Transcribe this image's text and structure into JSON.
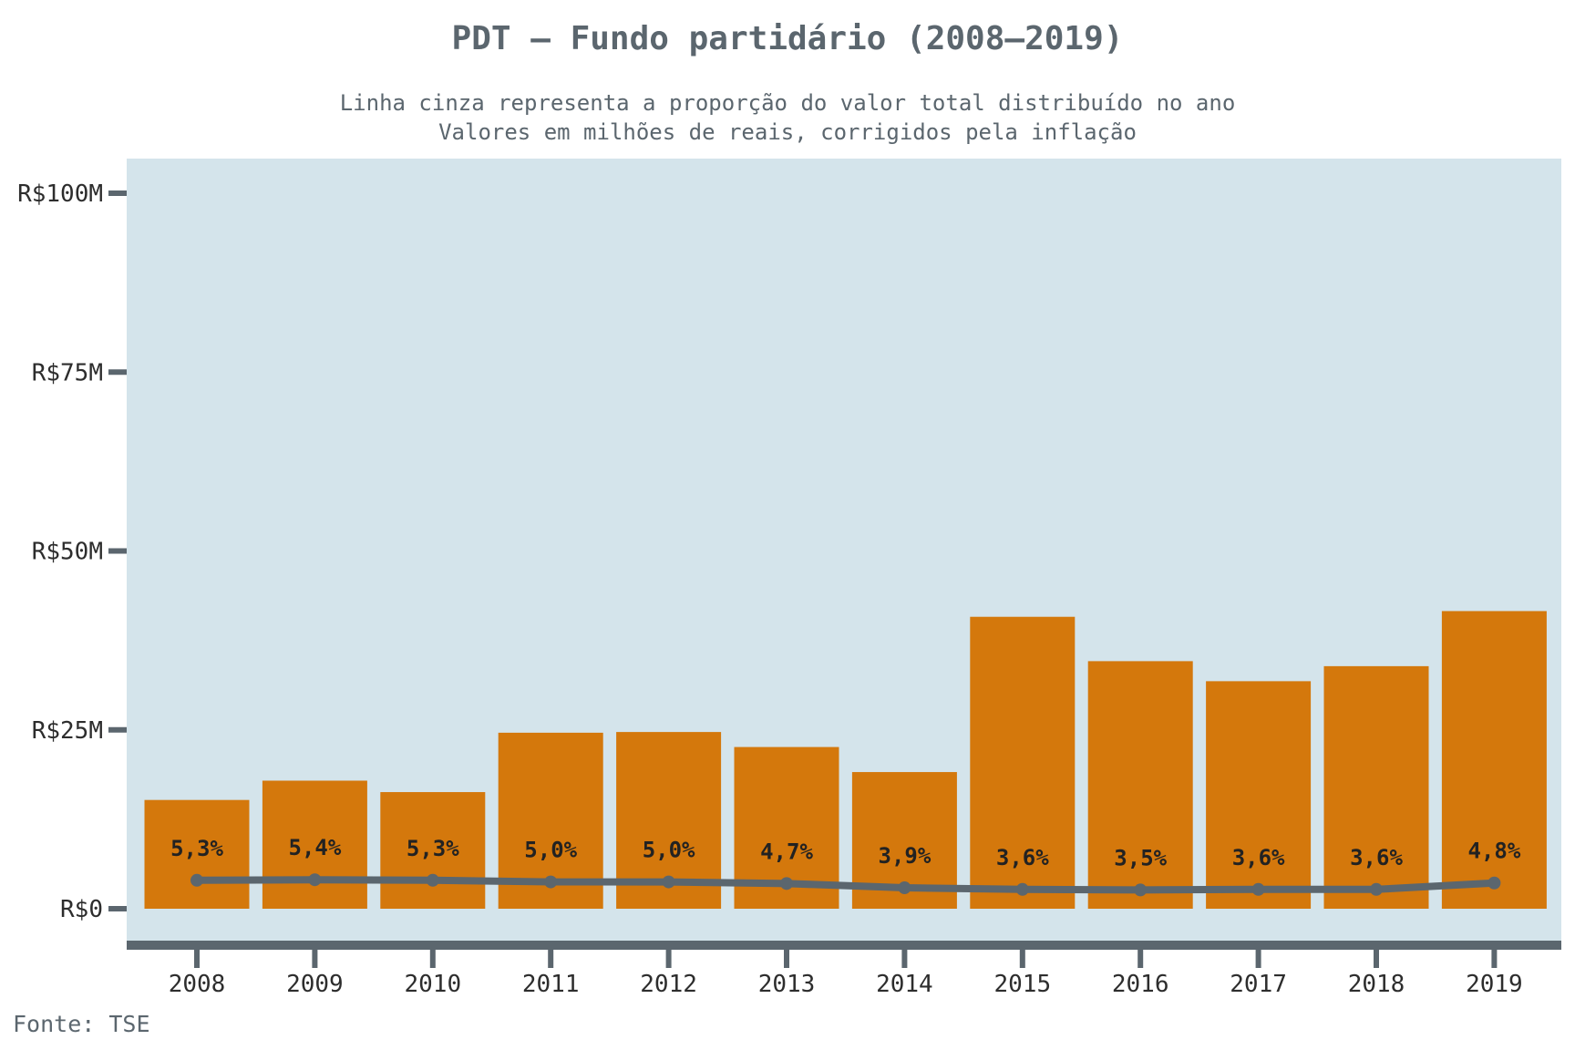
{
  "chart_data": {
    "type": "bar",
    "title": "PDT – Fundo partidário (2008–2019)",
    "subtitle_lines": [
      "Linha cinza representa a proporção do valor total distribuído no ano",
      "Valores em milhões de reais, corrigidos pela inflação"
    ],
    "source": "Fonte: TSE",
    "categories": [
      "2008",
      "2009",
      "2010",
      "2011",
      "2012",
      "2013",
      "2014",
      "2015",
      "2016",
      "2017",
      "2018",
      "2019"
    ],
    "series": [
      {
        "type": "bar",
        "values": [
          15.2,
          17.9,
          16.3,
          24.6,
          24.7,
          22.6,
          19.1,
          40.8,
          34.6,
          31.8,
          33.9,
          41.6
        ]
      },
      {
        "type": "line",
        "values": [
          5.3,
          5.4,
          5.3,
          5.0,
          5.0,
          4.7,
          3.9,
          3.6,
          3.5,
          3.6,
          3.6,
          4.8
        ],
        "labels": [
          "5,3%",
          "5,4%",
          "5,3%",
          "5,0%",
          "5,0%",
          "4,7%",
          "3,9%",
          "3,6%",
          "3,5%",
          "3,6%",
          "3,6%",
          "4,8%"
        ]
      }
    ],
    "ylim": [
      0,
      100
    ],
    "yticks": [
      0,
      25,
      50,
      75,
      100
    ],
    "ytick_labels": [
      "R$0",
      "R$25M",
      "R$50M",
      "R$75M",
      "R$100M"
    ],
    "colors": {
      "bar": "#d4780c",
      "line": "#5b666e",
      "panel": "#d4e4eb",
      "axis": "#5b666e",
      "text": "#5b666e"
    }
  }
}
